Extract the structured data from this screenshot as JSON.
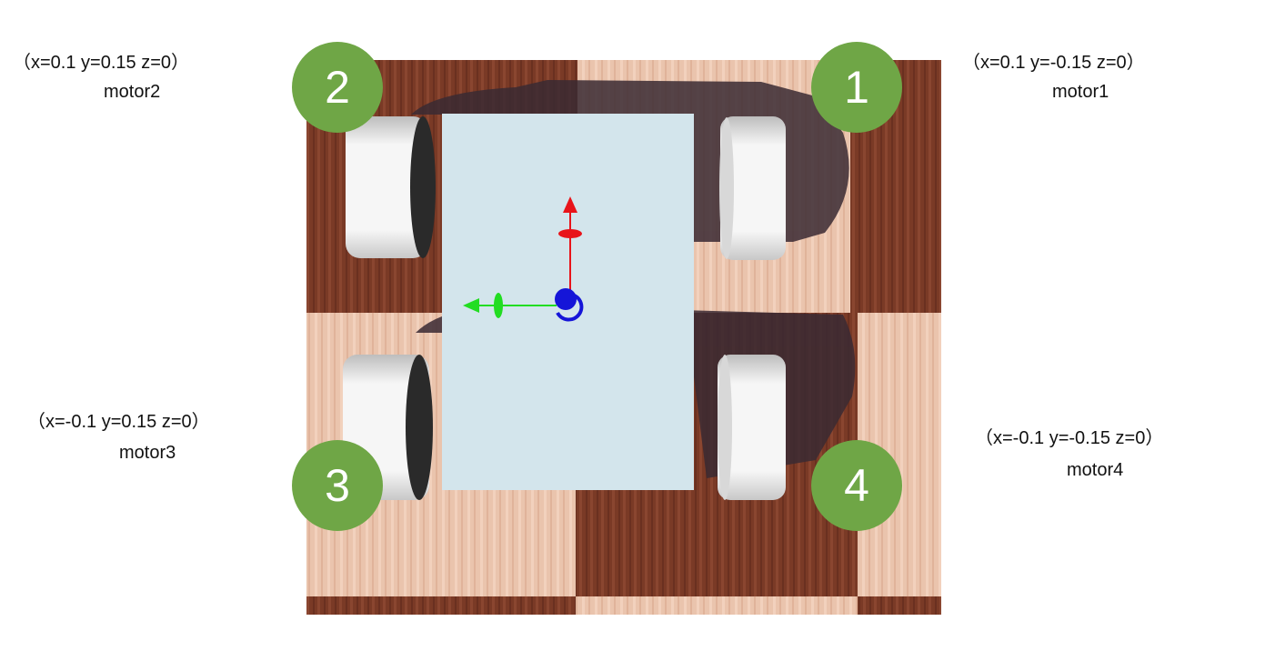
{
  "motors": [
    {
      "number": "1",
      "coords": "（x=0.1 y=-0.15 z=0）",
      "name": "motor1"
    },
    {
      "number": "2",
      "coords": "（x=0.1 y=0.15 z=0）",
      "name": "motor2"
    },
    {
      "number": "3",
      "coords": "（x=-0.1 y=0.15 z=0）",
      "name": "motor3"
    },
    {
      "number": "4",
      "coords": "（x=-0.1 y=-0.15 z=0）",
      "name": "motor4"
    }
  ],
  "colors": {
    "badge": "#6fa646",
    "wood_dark": "#7a3a26",
    "wood_light": "#e8c0a8",
    "chassis": "#d3e5ec",
    "shadow": "#3a2a33",
    "axis_x": "#e8141a",
    "axis_y": "#22dd22",
    "axis_z": "#1515d8"
  }
}
